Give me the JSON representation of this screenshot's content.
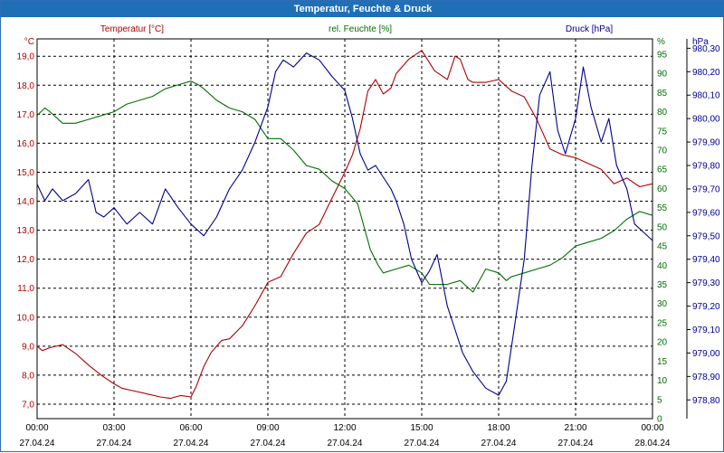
{
  "window": {
    "title": "Temperatur, Feuchte & Druck"
  },
  "chart_data": {
    "type": "line",
    "title": "Temperatur, Feuchte & Druck",
    "legend": {
      "placement": "top",
      "entries": [
        "Temperatur [°C]",
        "rel. Feuchte [%]",
        "Druck [hPa]"
      ]
    },
    "grid": true,
    "x_ticks": [
      {
        "time": "00:00",
        "date": "27.04.24"
      },
      {
        "time": "03:00",
        "date": "27.04.24"
      },
      {
        "time": "06:00",
        "date": "27.04.24"
      },
      {
        "time": "09:00",
        "date": "27.04.24"
      },
      {
        "time": "12:00",
        "date": "27.04.24"
      },
      {
        "time": "15:00",
        "date": "27.04.24"
      },
      {
        "time": "18:00",
        "date": "27.04.24"
      },
      {
        "time": "21:00",
        "date": "27.04.24"
      },
      {
        "time": "00:00",
        "date": "28.04.24"
      }
    ],
    "xlim_hours": [
      0,
      24
    ],
    "axes": {
      "left": {
        "unit": "°C",
        "color": "#b00000",
        "ylim": [
          6.5,
          19.6
        ],
        "ticks": [
          "7,0",
          "8,0",
          "9,0",
          "10,0",
          "11,0",
          "12,0",
          "13,0",
          "14,0",
          "15,0",
          "16,0",
          "17,0",
          "18,0",
          "19,0"
        ]
      },
      "middle": {
        "unit": "%",
        "color": "#007000",
        "ylim": [
          0,
          99
        ],
        "ticks": [
          "0",
          "5",
          "10",
          "15",
          "20",
          "25",
          "30",
          "35",
          "40",
          "45",
          "50",
          "55",
          "60",
          "65",
          "70",
          "75",
          "80",
          "85",
          "90",
          "95",
          "%"
        ]
      },
      "right": {
        "unit": "hPa",
        "color": "#000090",
        "ylim": [
          978.72,
          980.34
        ],
        "ticks": [
          "978,80",
          "978,90",
          "979,00",
          "979,10",
          "979,20",
          "979,30",
          "979,40",
          "979,50",
          "979,60",
          "979,70",
          "979,80",
          "979,90",
          "980,00",
          "980,10",
          "980,20",
          "980,30"
        ]
      }
    },
    "series": [
      {
        "name": "Temperatur [°C]",
        "axis": "left",
        "color": "#b00000",
        "x": [
          0,
          0.2,
          0.5,
          1,
          1.5,
          2,
          2.5,
          3,
          3.3,
          3.8,
          4.3,
          4.8,
          5.2,
          5.6,
          6,
          6.2,
          6.5,
          6.8,
          7.2,
          7.5,
          8,
          8.5,
          9,
          9.5,
          10,
          10.5,
          11,
          11.5,
          12,
          12.3,
          12.6,
          12.9,
          13.2,
          13.5,
          13.8,
          14,
          14.5,
          15,
          15.5,
          16,
          16.3,
          16.5,
          16.8,
          17,
          17.5,
          18,
          18.5,
          19,
          19.5,
          20,
          20.5,
          21,
          21.5,
          22,
          22.5,
          23,
          23.5,
          24
        ],
        "y": [
          9.0,
          8.85,
          8.95,
          9.05,
          8.75,
          8.35,
          8.0,
          7.7,
          7.55,
          7.45,
          7.35,
          7.25,
          7.2,
          7.3,
          7.25,
          7.6,
          8.3,
          8.8,
          9.2,
          9.25,
          9.7,
          10.4,
          11.2,
          11.4,
          12.2,
          12.9,
          13.2,
          14.1,
          15.0,
          15.6,
          16.5,
          17.8,
          18.2,
          17.7,
          17.9,
          18.4,
          18.9,
          19.2,
          18.5,
          18.2,
          19.0,
          18.9,
          18.2,
          18.1,
          18.1,
          18.2,
          17.8,
          17.6,
          16.8,
          15.8,
          15.6,
          15.5,
          15.3,
          15.1,
          14.6,
          14.8,
          14.5,
          14.6
        ]
      },
      {
        "name": "rel. Feuchte [%]",
        "axis": "middle",
        "color": "#007000",
        "x": [
          0,
          0.3,
          0.5,
          1,
          1.5,
          2,
          2.5,
          3,
          3.5,
          4,
          4.5,
          5,
          5.5,
          6,
          6.3,
          6.5,
          7,
          7.5,
          8,
          8.5,
          9,
          9.5,
          10,
          10.5,
          11,
          11.5,
          12,
          12.5,
          13,
          13.3,
          13.5,
          14,
          14.5,
          15,
          15.3,
          15.5,
          16,
          16.5,
          17,
          17.5,
          18,
          18.3,
          18.5,
          19,
          19.5,
          20,
          20.5,
          21,
          21.5,
          22,
          22.5,
          23,
          23.5,
          24
        ],
        "y": [
          79,
          81,
          80,
          77,
          77,
          78,
          79,
          80,
          82,
          83,
          84,
          86,
          87,
          88,
          87,
          86,
          83,
          81,
          80,
          78,
          73,
          73,
          70,
          66,
          65,
          62,
          60,
          56,
          44,
          40,
          38,
          39,
          40,
          38,
          35,
          35,
          35,
          36,
          33,
          39,
          38,
          36,
          37,
          38,
          39,
          40,
          42,
          45,
          46,
          47,
          49,
          52,
          54,
          53
        ]
      },
      {
        "name": "Druck [hPa]",
        "axis": "right",
        "color": "#000090",
        "x": [
          0,
          0.3,
          0.6,
          1,
          1.5,
          2,
          2.3,
          2.6,
          3,
          3.5,
          4,
          4.5,
          5,
          5.5,
          6,
          6.5,
          7,
          7.5,
          8,
          8.5,
          9,
          9.3,
          9.6,
          10,
          10.5,
          11,
          11.5,
          12,
          12.3,
          12.6,
          12.9,
          13.2,
          13.5,
          13.8,
          14,
          14.3,
          14.6,
          15,
          15.3,
          15.6,
          16,
          16.3,
          16.6,
          17,
          17.5,
          18,
          18.3,
          18.6,
          19,
          19.3,
          19.6,
          20,
          20.3,
          20.6,
          21,
          21.3,
          21.6,
          22,
          22.3,
          22.6,
          23,
          23.3,
          23.6,
          24
        ],
        "y": [
          979.72,
          979.65,
          979.7,
          979.65,
          979.68,
          979.74,
          979.6,
          979.58,
          979.62,
          979.55,
          979.6,
          979.55,
          979.7,
          979.62,
          979.55,
          979.5,
          979.58,
          979.7,
          979.78,
          979.9,
          980.05,
          980.2,
          980.25,
          980.22,
          980.28,
          980.25,
          980.18,
          980.12,
          980.0,
          979.85,
          979.78,
          979.8,
          979.75,
          979.7,
          979.65,
          979.55,
          979.4,
          979.3,
          979.35,
          979.42,
          979.2,
          979.1,
          979.0,
          978.92,
          978.85,
          978.82,
          978.88,
          979.1,
          979.4,
          979.8,
          980.1,
          980.2,
          979.95,
          979.85,
          980.0,
          980.22,
          980.05,
          979.9,
          980.0,
          979.8,
          979.7,
          979.55,
          979.52,
          979.48
        ]
      }
    ]
  }
}
